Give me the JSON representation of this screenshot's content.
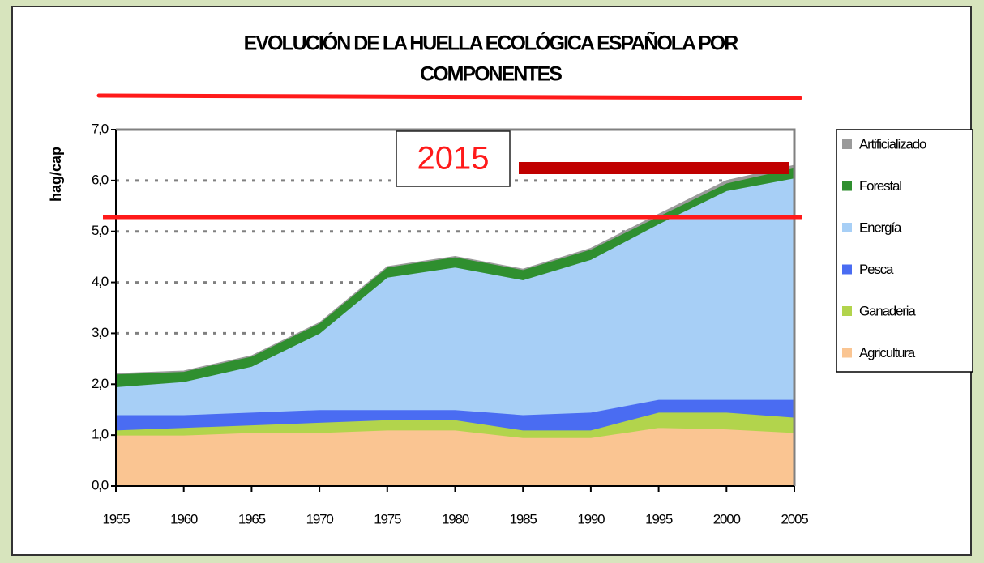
{
  "chart_data": {
    "type": "stacked-area",
    "title": [
      "EVOLUCIÓN DE LA HUELLA ECOLÓGICA ESPAÑOLA POR",
      "COMPONENTES"
    ],
    "y_label": "hag/cap",
    "annotation": "2015",
    "x": [
      1955,
      1960,
      1965,
      1970,
      1975,
      1980,
      1985,
      1990,
      1995,
      2000,
      2005
    ],
    "xlim": [
      1955,
      2005
    ],
    "xticks": [
      1955,
      1960,
      1965,
      1970,
      1975,
      1980,
      1985,
      1990,
      1995,
      2000,
      2005
    ],
    "ylim": [
      0,
      7
    ],
    "yticks": [
      {
        "value": 0,
        "label": "0,0"
      },
      {
        "value": 1,
        "label": "1,0"
      },
      {
        "value": 2,
        "label": "2,0"
      },
      {
        "value": 3,
        "label": "3,0"
      },
      {
        "value": 4,
        "label": "4,0"
      },
      {
        "value": 5,
        "label": "5,0"
      },
      {
        "value": 6,
        "label": "6,0"
      },
      {
        "value": 7,
        "label": "7,0"
      }
    ],
    "grid": true,
    "legend": "right",
    "series": [
      {
        "name": "Agricultura",
        "color": "#fac592",
        "values": [
          1.0,
          1.0,
          1.05,
          1.05,
          1.1,
          1.1,
          0.95,
          0.95,
          1.15,
          1.12,
          1.05
        ]
      },
      {
        "name": "Ganaderia",
        "color": "#b2d44c",
        "values": [
          0.1,
          0.15,
          0.15,
          0.2,
          0.2,
          0.2,
          0.15,
          0.15,
          0.3,
          0.33,
          0.3
        ]
      },
      {
        "name": "Pesca",
        "color": "#4a6cf2",
        "values": [
          0.3,
          0.25,
          0.25,
          0.25,
          0.2,
          0.2,
          0.3,
          0.35,
          0.25,
          0.25,
          0.35
        ]
      },
      {
        "name": "Energía",
        "color": "#a7cff6",
        "values": [
          0.55,
          0.65,
          0.9,
          1.5,
          2.6,
          2.8,
          2.65,
          3.0,
          3.45,
          4.1,
          4.35
        ]
      },
      {
        "name": "Forestal",
        "color": "#2f8f2f",
        "values": [
          0.25,
          0.2,
          0.2,
          0.2,
          0.2,
          0.2,
          0.2,
          0.2,
          0.15,
          0.15,
          0.2
        ]
      },
      {
        "name": "Artificializado",
        "color": "#9a9a9a",
        "values": [
          0.01,
          0.01,
          0.01,
          0.01,
          0.01,
          0.01,
          0.01,
          0.02,
          0.04,
          0.05,
          0.05
        ]
      }
    ]
  }
}
